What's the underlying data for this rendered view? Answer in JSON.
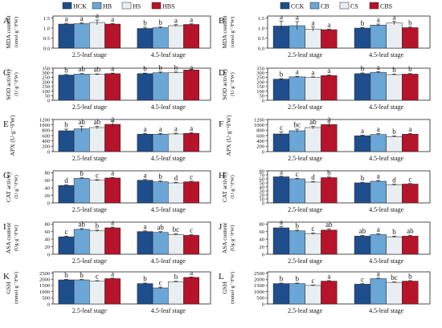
{
  "colors": {
    "c1": "#1f4e8c",
    "c2": "#6aa6d6",
    "c3": "#e9eef3",
    "c4": "#b5142a"
  },
  "legends": [
    {
      "side": "left",
      "labels": [
        "HCK",
        "HB",
        "HS",
        "HBS"
      ]
    },
    {
      "side": "right",
      "labels": [
        "CCK",
        "CB",
        "CS",
        "CBS"
      ]
    }
  ],
  "group_labels": [
    "2.5-leaf stage",
    "4.5-leaf stage"
  ],
  "chart_data": [
    {
      "panel": "A",
      "type": "bar",
      "ylabel": "MDA content",
      "unit": "(umol·g⁻¹FW)",
      "yticks": [
        "0.0",
        "0.5",
        "1.0",
        "1.5"
      ],
      "ylim": [
        0,
        1.6
      ],
      "categories": [
        "2.5-leaf stage",
        "4.5-leaf stage"
      ],
      "series": [
        {
          "name": "HCK",
          "values": [
            1.2,
            0.98
          ]
        },
        {
          "name": "HB",
          "values": [
            1.22,
            1.02
          ]
        },
        {
          "name": "HS",
          "values": [
            1.28,
            1.12
          ]
        },
        {
          "name": "HBS",
          "values": [
            1.2,
            1.18
          ]
        }
      ],
      "errors": [
        [
          0.04,
          0.06
        ],
        [
          0.04,
          0.04
        ],
        [
          0.12,
          0.05
        ],
        [
          0.03,
          0.03
        ]
      ],
      "letters": [
        [
          "a",
          "a",
          "a",
          "a"
        ],
        [
          "b",
          "b",
          "a",
          "a"
        ]
      ]
    },
    {
      "panel": "B",
      "type": "bar",
      "ylabel": "MDA content",
      "unit": "(umol·g⁻¹FW)",
      "yticks": [
        "0.0",
        "0.5",
        "1.0",
        "1.5"
      ],
      "ylim": [
        0,
        1.6
      ],
      "categories": [
        "2.5-leaf stage",
        "4.5-leaf stage"
      ],
      "series": [
        {
          "name": "CCK",
          "values": [
            1.1,
            1.0
          ]
        },
        {
          "name": "CB",
          "values": [
            1.12,
            1.15
          ]
        },
        {
          "name": "CS",
          "values": [
            0.95,
            1.25
          ]
        },
        {
          "name": "CBS",
          "values": [
            0.92,
            1.02
          ]
        }
      ],
      "errors": [
        [
          0.25,
          0.03
        ],
        [
          0.2,
          0.05
        ],
        [
          0.1,
          0.08
        ],
        [
          0.03,
          0.03
        ]
      ],
      "letters": [
        [
          "a",
          "a",
          "a",
          "a"
        ],
        [
          "b",
          "a",
          "a",
          "b"
        ]
      ]
    },
    {
      "panel": "C",
      "type": "bar",
      "ylabel": "SOD activity",
      "unit": "(U·g⁻¹FW)",
      "yticks": [
        "0",
        "50",
        "100",
        "150",
        "200",
        "250",
        "300",
        "350"
      ],
      "ylim": [
        0,
        350
      ],
      "categories": [
        "2.5-leaf stage",
        "4.5-leaf stage"
      ],
      "series": [
        {
          "name": "HCK",
          "values": [
            275,
            290
          ]
        },
        {
          "name": "HB",
          "values": [
            285,
            300
          ]
        },
        {
          "name": "HS",
          "values": [
            282,
            302
          ]
        },
        {
          "name": "HBS",
          "values": [
            290,
            330
          ]
        }
      ],
      "errors": [
        [
          6,
          6
        ],
        [
          6,
          8
        ],
        [
          5,
          6
        ],
        [
          6,
          6
        ]
      ],
      "letters": [
        [
          "b",
          "ab",
          "ab",
          "a"
        ],
        [
          "b",
          "b",
          "b",
          "a"
        ]
      ]
    },
    {
      "panel": "D",
      "type": "bar",
      "ylabel": "SOD activity",
      "unit": "(U·g⁻¹FW)",
      "yticks": [
        "0",
        "50",
        "100",
        "150",
        "200",
        "250",
        "300",
        "350"
      ],
      "ylim": [
        0,
        350
      ],
      "categories": [
        "2.5-leaf stage",
        "4.5-leaf stage"
      ],
      "series": [
        {
          "name": "CCK",
          "values": [
            230,
            290
          ]
        },
        {
          "name": "CB",
          "values": [
            255,
            305
          ]
        },
        {
          "name": "CS",
          "values": [
            250,
            280
          ]
        },
        {
          "name": "CBS",
          "values": [
            270,
            285
          ]
        }
      ],
      "errors": [
        [
          5,
          8
        ],
        [
          6,
          8
        ],
        [
          5,
          6
        ],
        [
          6,
          6
        ]
      ],
      "letters": [
        [
          "b",
          "a",
          "a",
          "a"
        ],
        [
          "b",
          "a",
          "b",
          "b"
        ]
      ]
    },
    {
      "panel": "E",
      "type": "bar",
      "ylabel": "APX (U·g⁻¹FW)",
      "unit": "",
      "yticks": [
        "0",
        "200",
        "400",
        "600",
        "800",
        "1000",
        "1200"
      ],
      "ylim": [
        0,
        1200
      ],
      "categories": [
        "2.5-leaf stage",
        "4.5-leaf stage"
      ],
      "series": [
        {
          "name": "HCK",
          "values": [
            780,
            650
          ]
        },
        {
          "name": "HB",
          "values": [
            850,
            650
          ]
        },
        {
          "name": "HS",
          "values": [
            900,
            660
          ]
        },
        {
          "name": "HBS",
          "values": [
            1020,
            680
          ]
        }
      ],
      "errors": [
        [
          60,
          30
        ],
        [
          100,
          30
        ],
        [
          50,
          30
        ],
        [
          100,
          30
        ]
      ],
      "letters": [
        [
          "b",
          "ab",
          "ab",
          "a"
        ],
        [
          "a",
          "a",
          "a",
          "a"
        ]
      ]
    },
    {
      "panel": "F",
      "type": "bar",
      "ylabel": "APX (U·g⁻¹FW)",
      "unit": "",
      "yticks": [
        "0",
        "200",
        "400",
        "600",
        "800",
        "1000",
        "1200"
      ],
      "ylim": [
        0,
        1200
      ],
      "categories": [
        "2.5-leaf stage",
        "4.5-leaf stage"
      ],
      "series": [
        {
          "name": "CCK",
          "values": [
            660,
            590
          ]
        },
        {
          "name": "CB",
          "values": [
            780,
            640
          ]
        },
        {
          "name": "CS",
          "values": [
            900,
            560
          ]
        },
        {
          "name": "CBS",
          "values": [
            1010,
            650
          ]
        }
      ],
      "errors": [
        [
          80,
          30
        ],
        [
          60,
          30
        ],
        [
          50,
          20
        ],
        [
          100,
          30
        ]
      ],
      "letters": [
        [
          "c",
          "bc",
          "ab",
          "a"
        ],
        [
          "a",
          "a",
          "b",
          "a"
        ]
      ]
    },
    {
      "panel": "G",
      "type": "bar",
      "ylabel": "CAT activity",
      "unit": "(U·g⁻¹FW)",
      "yticks": [
        "0",
        "20",
        "40",
        "60",
        "80"
      ],
      "ylim": [
        0,
        85
      ],
      "categories": [
        "2.5-leaf stage",
        "4.5-leaf stage"
      ],
      "series": [
        {
          "name": "HCK",
          "values": [
            46,
            60
          ]
        },
        {
          "name": "HB",
          "values": [
            65,
            56
          ]
        },
        {
          "name": "HS",
          "values": [
            60,
            53
          ]
        },
        {
          "name": "HBS",
          "values": [
            66,
            56
          ]
        }
      ],
      "errors": [
        [
          1.5,
          2
        ],
        [
          1.5,
          2
        ],
        [
          1.5,
          1.5
        ],
        [
          1.5,
          1.5
        ]
      ],
      "letters": [
        [
          "d",
          "b",
          "c",
          "a"
        ],
        [
          "a",
          "b",
          "d",
          "c"
        ]
      ]
    },
    {
      "panel": "H",
      "type": "bar",
      "ylabel": "CAT activity",
      "unit": "(U·g⁻¹FW)",
      "yticks": [
        "0",
        "10",
        "20",
        "30",
        "40",
        "50",
        "60",
        "70",
        "80"
      ],
      "ylim": [
        0,
        80
      ],
      "categories": [
        "2.5-leaf stage",
        "4.5-leaf stage"
      ],
      "series": [
        {
          "name": "CCK",
          "values": [
            65,
            50
          ]
        },
        {
          "name": "CB",
          "values": [
            60,
            54
          ]
        },
        {
          "name": "CS",
          "values": [
            52,
            45
          ]
        },
        {
          "name": "CBS",
          "values": [
            63,
            47
          ]
        }
      ],
      "errors": [
        [
          1.5,
          1.5
        ],
        [
          1.5,
          2
        ],
        [
          1.5,
          1.5
        ],
        [
          1.5,
          1.5
        ]
      ],
      "letters": [
        [
          "a",
          "c",
          "d",
          "b"
        ],
        [
          "b",
          "a",
          "d",
          "c"
        ]
      ]
    },
    {
      "panel": "I",
      "type": "bar",
      "ylabel": "ASA content",
      "unit": "(Ug·g⁻¹FW)",
      "yticks": [
        "0",
        "20",
        "40",
        "60",
        "80"
      ],
      "ylim": [
        0,
        85
      ],
      "categories": [
        "2.5-leaf stage",
        "4.5-leaf stage"
      ],
      "series": [
        {
          "name": "HCK",
          "values": [
            46,
            60
          ]
        },
        {
          "name": "HB",
          "values": [
            66,
            58
          ]
        },
        {
          "name": "HS",
          "values": [
            62,
            52
          ]
        },
        {
          "name": "HBS",
          "values": [
            70,
            50
          ]
        }
      ],
      "errors": [
        [
          2,
          2
        ],
        [
          2,
          2
        ],
        [
          2,
          2
        ],
        [
          2,
          2
        ]
      ],
      "letters": [
        [
          "c",
          "ab",
          "b",
          "a"
        ],
        [
          "a",
          "ab",
          "bc",
          "c"
        ]
      ]
    },
    {
      "panel": "J",
      "type": "bar",
      "ylabel": "ASA content",
      "unit": "(Ug·g⁻¹FW)",
      "yticks": [
        "0",
        "20",
        "40",
        "60",
        "80"
      ],
      "ylim": [
        0,
        85
      ],
      "categories": [
        "2.5-leaf stage",
        "4.5-leaf stage"
      ],
      "series": [
        {
          "name": "CCK",
          "values": [
            70,
            48
          ]
        },
        {
          "name": "CB",
          "values": [
            62,
            52
          ]
        },
        {
          "name": "CS",
          "values": [
            54,
            46
          ]
        },
        {
          "name": "CBS",
          "values": [
            64,
            48
          ]
        }
      ],
      "errors": [
        [
          3,
          2
        ],
        [
          2,
          2
        ],
        [
          2,
          2
        ],
        [
          3,
          2
        ]
      ],
      "letters": [
        [
          "a",
          "b",
          "c",
          "ab"
        ],
        [
          "ab",
          "a",
          "b",
          "ab"
        ]
      ]
    },
    {
      "panel": "K",
      "type": "bar",
      "ylabel": "GSH",
      "unit": "(mmol·g⁻¹FW)",
      "yticks": [
        "0",
        "500",
        "1000",
        "1500",
        "2000",
        "2500"
      ],
      "ylim": [
        0,
        2600
      ],
      "categories": [
        "2.5-leaf stage",
        "4.5-leaf stage"
      ],
      "series": [
        {
          "name": "HCK",
          "values": [
            1950,
            1650
          ]
        },
        {
          "name": "HB",
          "values": [
            1950,
            1300
          ]
        },
        {
          "name": "HS",
          "values": [
            1850,
            1800
          ]
        },
        {
          "name": "HBS",
          "values": [
            2050,
            2150
          ]
        }
      ],
      "errors": [
        [
          40,
          40
        ],
        [
          40,
          60
        ],
        [
          40,
          40
        ],
        [
          40,
          40
        ]
      ],
      "letters": [
        [
          "b",
          "b",
          "c",
          "a"
        ],
        [
          "b",
          "c",
          "b",
          "a"
        ]
      ]
    },
    {
      "panel": "L",
      "type": "bar",
      "ylabel": "GSH",
      "unit": "(mmol·g⁻¹FW)",
      "yticks": [
        "0",
        "500",
        "1000",
        "1500",
        "2000",
        "2500"
      ],
      "ylim": [
        0,
        2600
      ],
      "categories": [
        "2.5-leaf stage",
        "4.5-leaf stage"
      ],
      "series": [
        {
          "name": "CCK",
          "values": [
            1650,
            1600
          ]
        },
        {
          "name": "CB",
          "values": [
            1650,
            2050
          ]
        },
        {
          "name": "CS",
          "values": [
            1500,
            1750
          ]
        },
        {
          "name": "CBS",
          "values": [
            1850,
            1850
          ]
        }
      ],
      "errors": [
        [
          40,
          40
        ],
        [
          40,
          40
        ],
        [
          40,
          40
        ],
        [
          40,
          40
        ]
      ],
      "letters": [
        [
          "b",
          "b",
          "c",
          "a"
        ],
        [
          "c",
          "a",
          "bc",
          "b"
        ]
      ]
    }
  ]
}
